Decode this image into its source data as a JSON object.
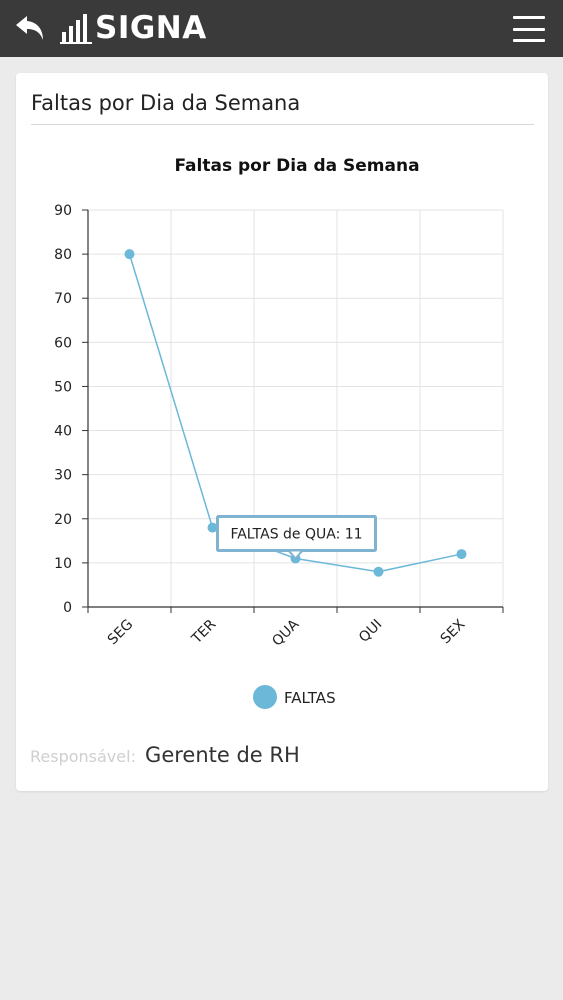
{
  "header": {
    "brand": "SIGNA",
    "back_icon": "back-arrow-icon",
    "menu_icon": "hamburger-menu-icon",
    "background": "#3a3a3a"
  },
  "card": {
    "title": "Faltas por Dia da Semana",
    "responsible_label": "Responsável:",
    "responsible_value": "Gerente de RH"
  },
  "chart_data": {
    "type": "line",
    "title": "Faltas por Dia da Semana",
    "categories": [
      "SEG",
      "TER",
      "QUA",
      "QUI",
      "SEX"
    ],
    "series": [
      {
        "name": "FALTAS",
        "values": [
          80,
          18,
          11,
          8,
          12
        ],
        "color": "#6bb8d8"
      }
    ],
    "yticks": [
      0,
      10,
      20,
      30,
      40,
      50,
      60,
      70,
      80,
      90
    ],
    "ylim": [
      0,
      90
    ],
    "grid": true,
    "legend": "bottom",
    "tooltip": {
      "text": "FALTAS de QUA: 11",
      "category": "QUA"
    }
  }
}
